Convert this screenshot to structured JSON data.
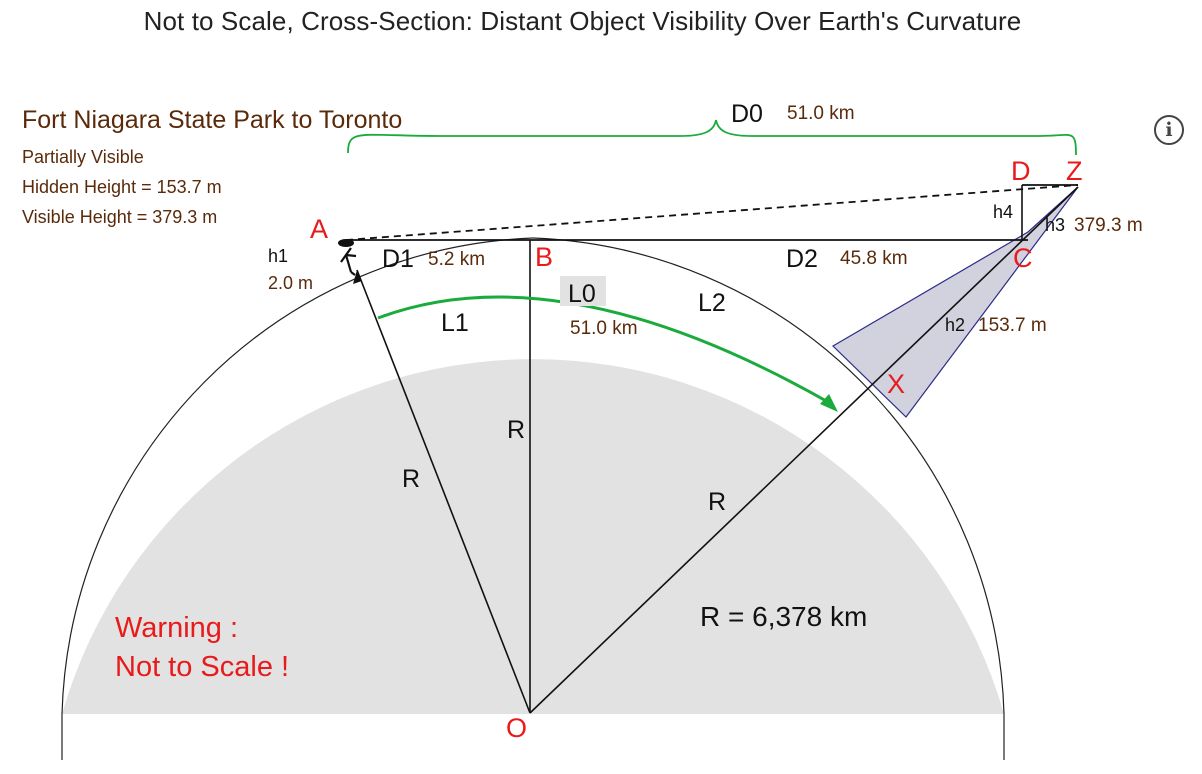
{
  "title": "Not to Scale, Cross-Section: Distant Object Visibility Over Earth's Curvature",
  "info": {
    "icon": "info-icon",
    "glyph": "i"
  },
  "scenario": {
    "name": "Fort Niagara State Park to Toronto",
    "status": "Partially Visible",
    "hidden_height": "Hidden Height = 153.7 m",
    "visible_height": "Visible Height = 379.3 m"
  },
  "labels": {
    "D0": "D0",
    "D0_value": "51.0 km",
    "D1": "D1",
    "D1_value": "5.2 km",
    "D2": "D2",
    "D2_value": "45.8 km",
    "L0": "L0",
    "L0_value": "51.0 km",
    "L1": "L1",
    "L2": "L2",
    "h1": "h1",
    "h1_value": "2.0 m",
    "h2": "h2",
    "h2_value": "153.7 m",
    "h3": "h3",
    "h3_value": "379.3 m",
    "h4": "h4",
    "R": "R",
    "R_value": "R = 6,378 km"
  },
  "points": {
    "A": "A",
    "B": "B",
    "C": "C",
    "D": "D",
    "Z": "Z",
    "X": "X",
    "O": "O"
  },
  "warning": {
    "line1": "Warning :",
    "line2": "Not to Scale !"
  },
  "colors": {
    "earth_fill": "#e2e2e2",
    "brown_text": "#5a2a0a",
    "point_red": "#e81a1a",
    "arc_green": "#1aab3c",
    "hidden_region": "#c3c3d3",
    "hidden_outline": "#2a2a8a"
  }
}
